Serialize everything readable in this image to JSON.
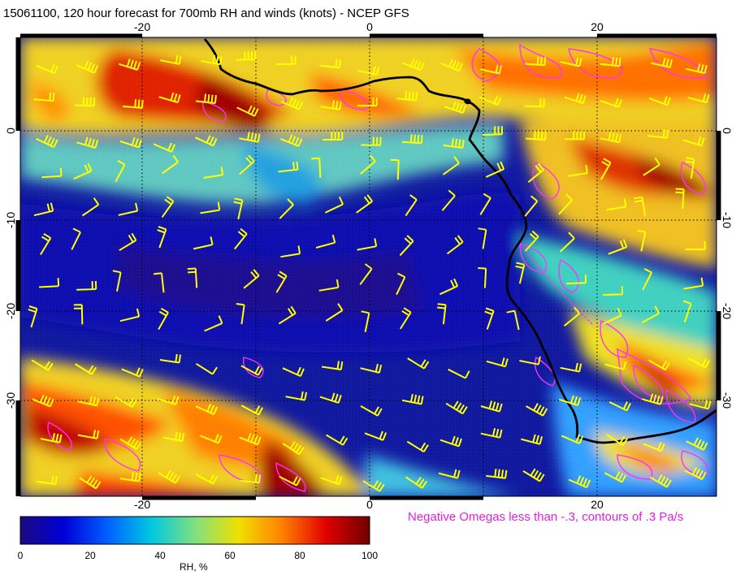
{
  "title": "15061100, 120 hour forecast for 700mb RH and winds (knots) - NCEP GFS",
  "map": {
    "lon_ticks": [
      "-20",
      "0",
      "20"
    ],
    "lat_ticks": [
      "0",
      "-10",
      "-20",
      "-30"
    ],
    "coastline_color": "#000000",
    "barb_color": "#ffff00",
    "omega_contour_color": "#ff30ff"
  },
  "legend": {
    "note": "Negative Omegas less than -.3, contours of .3 Pa/s",
    "colorbar_title": "RH, %",
    "colorbar_ticks": [
      "0",
      "20",
      "40",
      "60",
      "80",
      "100"
    ],
    "colorbar_colors": [
      "#1a0a80",
      "#0000d8",
      "#0060ff",
      "#00c8e0",
      "#80e080",
      "#f0e000",
      "#ff8000",
      "#e00000",
      "#700000"
    ]
  }
}
